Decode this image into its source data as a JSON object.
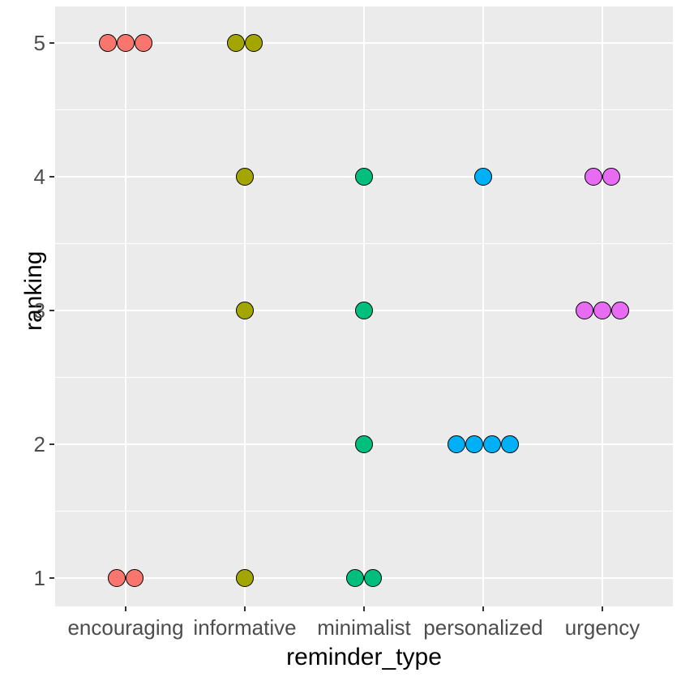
{
  "chart_data": {
    "type": "scatter",
    "title": "",
    "xlabel": "reminder_type",
    "ylabel": "ranking",
    "categories": [
      "encouraging",
      "informative",
      "minimalist",
      "personalized",
      "urgency"
    ],
    "yticks": [
      1,
      2,
      3,
      4,
      5
    ],
    "ylim": [
      0.8,
      5.2
    ],
    "grid": true,
    "legend": "none",
    "panel_bg": "#EBEBEB",
    "grid_color": "#FFFFFF",
    "tick_mark_color": "#333333",
    "tick_label_color": "#4D4D4D",
    "point_outline_color": "#000000",
    "series": [
      {
        "name": "encouraging",
        "color": "#F8766D",
        "values": [
          5,
          5,
          5,
          1,
          1
        ]
      },
      {
        "name": "informative",
        "color": "#A3A500",
        "values": [
          5,
          5,
          4,
          3,
          1
        ]
      },
      {
        "name": "minimalist",
        "color": "#00BF7D",
        "values": [
          4,
          3,
          2,
          1,
          1
        ]
      },
      {
        "name": "personalized",
        "color": "#00B0F6",
        "values": [
          4,
          2,
          2,
          2,
          2
        ]
      },
      {
        "name": "urgency",
        "color": "#E76BF3",
        "values": [
          4,
          4,
          3,
          3,
          3
        ]
      }
    ]
  }
}
